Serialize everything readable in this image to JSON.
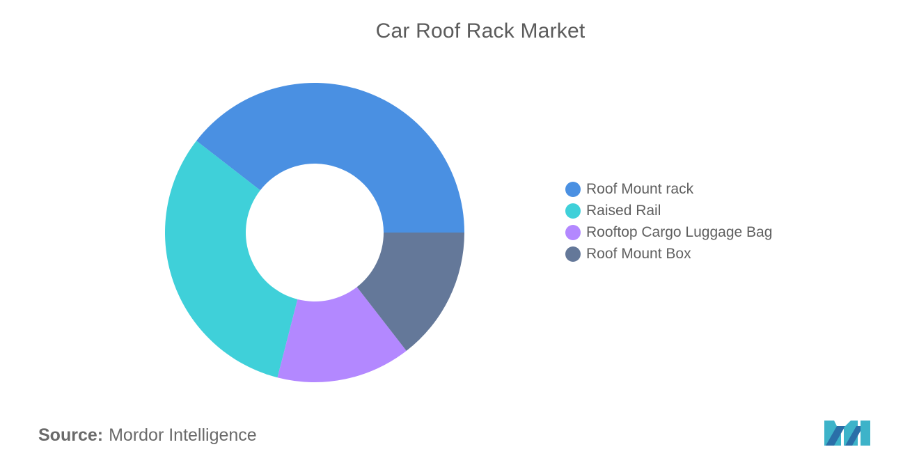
{
  "chart_data": {
    "type": "pie",
    "title": "Car Roof Rack Market",
    "donut": true,
    "categories": [
      "Roof Mount rack",
      "Raised Rail",
      "Rooftop Cargo Luggage Bag",
      "Roof Mount Box"
    ],
    "values": [
      39.5,
      31.5,
      14.5,
      14.5
    ],
    "colors": [
      "#4a90e2",
      "#3fd0d9",
      "#b388ff",
      "#647899"
    ],
    "legend_position": "right"
  },
  "source": {
    "label": "Source:",
    "text": "Mordor Intelligence"
  },
  "logo": {
    "icon": "mordor-intelligence-logo"
  }
}
